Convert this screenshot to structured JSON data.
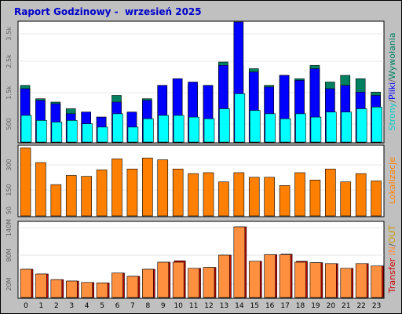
{
  "title": "Raport Godzinowy -  wrzesień 2025",
  "colors": {
    "background": "#c0c0c0",
    "panel": "#ffffff",
    "strony": "#00ffff",
    "pliki": "#0000ff",
    "wywolania": "#008060",
    "lokalizacje": "#ff8000",
    "transfer_in": "#ff9040",
    "transfer_out": "#cc0000",
    "title": "#0000cc"
  },
  "chart_data": [
    {
      "type": "bar",
      "categories": [
        "0",
        "1",
        "2",
        "3",
        "4",
        "5",
        "6",
        "7",
        "8",
        "9",
        "10",
        "11",
        "12",
        "13",
        "14",
        "15",
        "16",
        "17",
        "18",
        "19",
        "20",
        "21",
        "22",
        "23"
      ],
      "yticks": [
        "3.5k",
        "2.5k",
        "1.5k",
        "500"
      ],
      "ylim": [
        0,
        3600
      ],
      "legend_parts": [
        {
          "text": "Strony",
          "color": "#00cccc"
        },
        {
          "text": "/",
          "color": "#606060"
        },
        {
          "text": "Pliki",
          "color": "#0000ff"
        },
        {
          "text": "/",
          "color": "#606060"
        },
        {
          "text": "Wywołania",
          "color": "#008060"
        }
      ],
      "series": [
        {
          "name": "Wywołania",
          "values": [
            1700,
            1300,
            1200,
            1000,
            900,
            750,
            1400,
            900,
            1300,
            1700,
            1900,
            1700,
            1700,
            2400,
            2300,
            2200,
            1700,
            2000,
            1900,
            2300,
            1800,
            2000,
            1900,
            1500
          ]
        },
        {
          "name": "Pliki",
          "values": [
            1600,
            1250,
            1150,
            850,
            900,
            750,
            1200,
            900,
            1250,
            1700,
            1900,
            1800,
            1700,
            2300,
            3600,
            2100,
            1650,
            2000,
            1850,
            2200,
            1600,
            1700,
            1500,
            1400
          ]
        },
        {
          "name": "Strony",
          "values": [
            800,
            650,
            600,
            650,
            550,
            450,
            850,
            450,
            700,
            800,
            800,
            750,
            700,
            1000,
            1450,
            950,
            850,
            700,
            850,
            750,
            900,
            900,
            1000,
            1050
          ]
        }
      ]
    },
    {
      "type": "bar",
      "categories": [
        "0",
        "1",
        "2",
        "3",
        "4",
        "5",
        "6",
        "7",
        "8",
        "9",
        "10",
        "11",
        "12",
        "13",
        "14",
        "15",
        "16",
        "17",
        "18",
        "19",
        "20",
        "21",
        "22",
        "23"
      ],
      "yticks": [
        "300",
        "150",
        "50"
      ],
      "ylim": [
        0,
        380
      ],
      "legend_parts": [
        {
          "text": "Lokalizacje",
          "color": "#ff8000"
        }
      ],
      "series": [
        {
          "name": "Lokalizacje",
          "values": [
            370,
            290,
            170,
            220,
            215,
            250,
            310,
            255,
            315,
            305,
            255,
            230,
            235,
            185,
            235,
            210,
            210,
            165,
            235,
            195,
            255,
            185,
            230,
            190
          ]
        }
      ]
    },
    {
      "type": "bar",
      "categories": [
        "0",
        "1",
        "2",
        "3",
        "4",
        "5",
        "6",
        "7",
        "8",
        "9",
        "10",
        "11",
        "12",
        "13",
        "14",
        "15",
        "16",
        "17",
        "18",
        "19",
        "20",
        "21",
        "22",
        "23"
      ],
      "yticks": [
        "140M",
        "80M",
        "20M"
      ],
      "ylim": [
        0,
        160
      ],
      "legend_parts": [
        {
          "text": "Transfer",
          "color": "#cc0000"
        },
        {
          "text": " IN",
          "color": "#ff9040"
        },
        {
          "text": "/",
          "color": "#606060"
        },
        {
          "text": "OUT",
          "color": "#cc9900"
        }
      ],
      "series": [
        {
          "name": "Transfer IN",
          "values": [
            60,
            50,
            38,
            35,
            32,
            31,
            52,
            45,
            60,
            75,
            75,
            62,
            64,
            90,
            150,
            77,
            91,
            91,
            75,
            74,
            72,
            62,
            72,
            67
          ]
        },
        {
          "name": "Transfer OUT",
          "values": [
            60,
            50,
            38,
            35,
            32,
            31,
            52,
            45,
            60,
            75,
            78,
            62,
            64,
            90,
            150,
            77,
            91,
            92,
            77,
            74,
            72,
            62,
            72,
            67
          ]
        }
      ]
    }
  ]
}
